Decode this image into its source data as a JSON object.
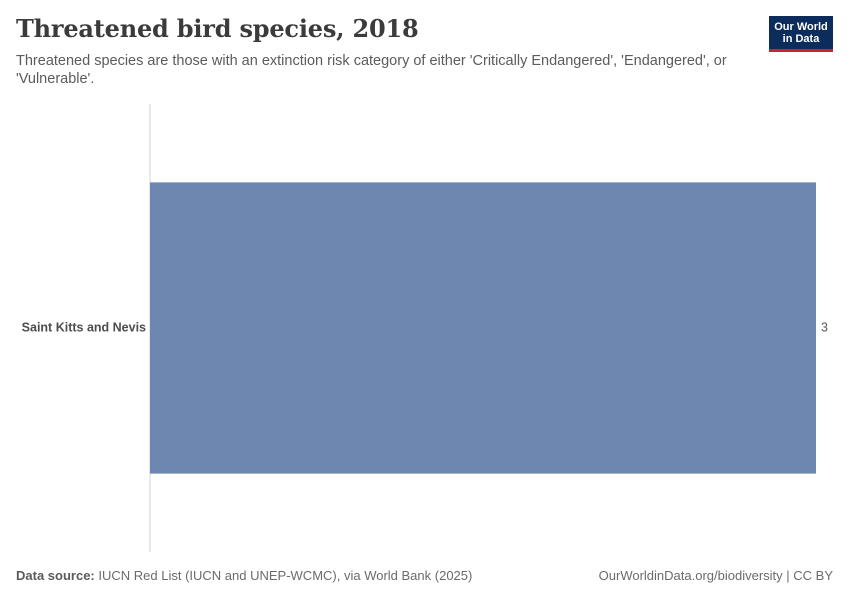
{
  "header": {
    "title": "Threatened bird species, 2018",
    "subtitle": "Threatened species are those with an extinction risk category of either 'Critically Endangered', 'Endangered', or 'Vulnerable'.",
    "logo_line1": "Our World",
    "logo_line2": "in Data"
  },
  "chart_data": {
    "type": "bar",
    "orientation": "horizontal",
    "categories": [
      "Saint Kitts and Nevis"
    ],
    "values": [
      3
    ],
    "xlim": [
      0,
      3
    ],
    "grid": false,
    "bar_color": "#6e87b0"
  },
  "footer": {
    "source_label": "Data source:",
    "source_text": "IUCN Red List (IUCN and UNEP-WCMC), via World Bank (2025)",
    "right_text": "OurWorldinData.org/biodiversity | CC BY"
  },
  "colors": {
    "logo_bg": "#0c2c5b",
    "logo_accent": "#ce261e",
    "axis": "#d0d0d0"
  }
}
